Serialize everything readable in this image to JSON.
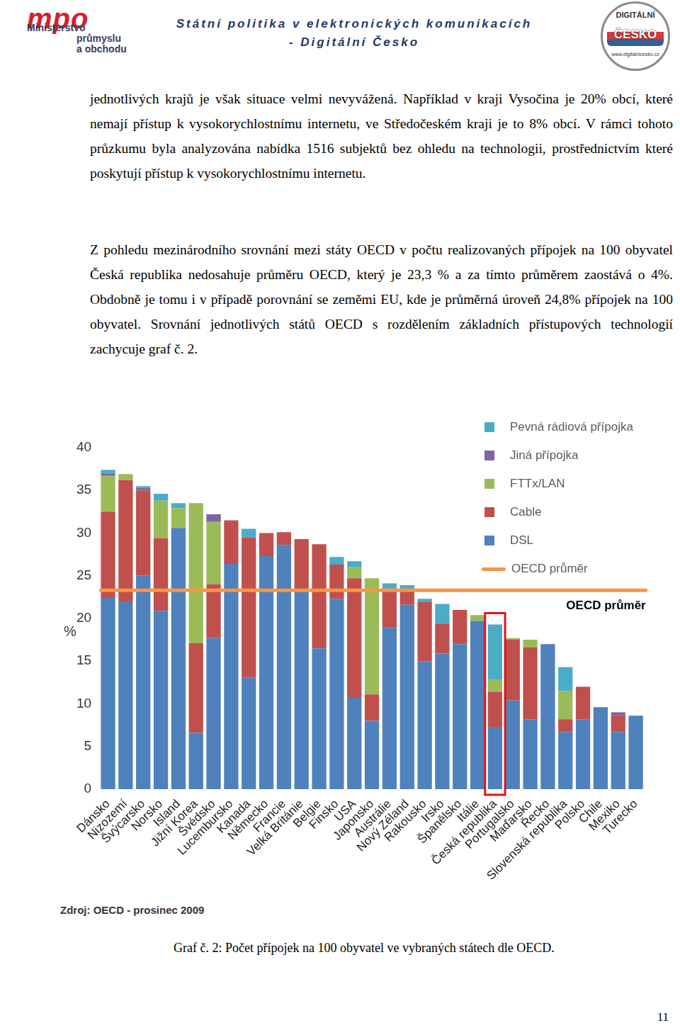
{
  "header": {
    "logo_mark": "mpo",
    "logo_lines": [
      "Ministerstvo",
      "průmyslu",
      "a obchodu"
    ],
    "title": "Státní politika v elektronických komunikacích",
    "subtitle": "- Digitální Česko",
    "badge": [
      "DIGITÁLNÍ",
      "ČESKO",
      "www.digitalnicesko.cz"
    ]
  },
  "paragraphs": [
    "jednotlivých krajů je však situace velmi nevyvážená. Například v kraji Vysočina je 20% obcí, které nemají přístup k vysokorychlostnímu internetu, ve Středočeském kraji je to 8% obcí. V rámci tohoto průzkumu byla analyzována nabídka 1516 subjektů bez ohledu na technologii, prostřednictvím které poskytují přístup k vysokorychlostnímu internetu.",
    "Z pohledu mezinárodního srovnání mezi státy OECD v počtu realizovaných přípojek na 100 obyvatel Česká republika nedosahuje průměru OECD, který je 23,3 % a za tímto průměrem zaostává o 4%. Obdobně je tomu i v případě porovnání se zeměmi EU, kde je průměrná úroveň 24,8% přípojek na 100 obyvatel. Srovnání jednotlivých států OECD s rozdělením základních přístupových technologií zachycuje graf č. 2."
  ],
  "chart_data": {
    "type": "bar",
    "stacked": true,
    "grid": false,
    "legend": "upper right",
    "y_label": "%",
    "ylim": [
      0,
      40
    ],
    "yticks": [
      0,
      5,
      10,
      15,
      20,
      25,
      30,
      35,
      40
    ],
    "categories": [
      "Dánsko",
      "Nizozemí",
      "Švýcarsko",
      "Norsko",
      "Island",
      "Jižní Korea",
      "Švédsko",
      "Lucembursko",
      "Kanada",
      "Německo",
      "Francie",
      "Velká Británie",
      "Belgie",
      "Finsko",
      "USA",
      "Japonsko",
      "Austrálie",
      "Nový Zéland",
      "Rakousko",
      "Irsko",
      "Španělsko",
      "Itálie",
      "Česká republika",
      "Portugalsko",
      "Maďarsko",
      "Řecko",
      "Slovenská republika",
      "Polsko",
      "Chile",
      "Mexiko",
      "Turecko"
    ],
    "series": [
      {
        "name": "DSL",
        "color": "#4f81bd",
        "values": [
          22.4,
          22.0,
          25.0,
          20.9,
          30.6,
          6.6,
          17.7,
          26.4,
          13.1,
          27.3,
          28.6,
          23.3,
          16.5,
          22.3,
          10.7,
          8.0,
          18.9,
          21.6,
          15.0,
          15.9,
          17.0,
          19.7,
          7.3,
          10.4,
          8.2,
          17.0,
          6.7,
          8.2,
          9.6,
          6.7,
          8.6
        ]
      },
      {
        "name": "Cable",
        "color": "#c0504d",
        "values": [
          10.1,
          14.2,
          10.0,
          8.5,
          0,
          10.5,
          6.3,
          5.1,
          16.4,
          2.7,
          1.5,
          6.0,
          12.2,
          4.0,
          14.0,
          3.1,
          4.3,
          1.6,
          6.9,
          3.5,
          4.0,
          0,
          4.1,
          7.1,
          8.4,
          0,
          1.5,
          3.8,
          0,
          2.0,
          0
        ]
      },
      {
        "name": "FTTx/LAN",
        "color": "#9bbb59",
        "values": [
          4.2,
          0.7,
          0,
          4.4,
          2.3,
          16.4,
          7.3,
          0,
          0,
          0,
          0,
          0,
          0,
          0,
          1.3,
          13.6,
          0,
          0,
          0,
          0,
          0,
          0.7,
          1.4,
          0.2,
          0.9,
          0,
          3.3,
          0,
          0,
          0,
          0
        ]
      },
      {
        "name": "Jiná přípojka",
        "color": "#8064a2",
        "values": [
          0.3,
          0,
          0.3,
          0,
          0,
          0,
          0.9,
          0,
          0,
          0,
          0,
          0,
          0,
          0,
          0,
          0,
          0,
          0,
          0,
          0,
          0,
          0,
          0,
          0,
          0,
          0,
          0,
          0,
          0,
          0.3,
          0
        ]
      },
      {
        "name": "Pevná rádiová přípojka",
        "color": "#4bacc6",
        "values": [
          0.4,
          0,
          0.2,
          0.8,
          0.6,
          0,
          0,
          0,
          1.0,
          0,
          0,
          0,
          0,
          0.9,
          0.7,
          0,
          0.9,
          0.7,
          0.4,
          2.3,
          0,
          0,
          6.5,
          0,
          0,
          0,
          2.8,
          0,
          0,
          0,
          0
        ]
      }
    ],
    "average": {
      "name": "OECD průměr",
      "value": 23.3,
      "color": "#f79646"
    },
    "annotation": "OECD průměr",
    "source": "Zdroj: OECD - prosinec 2009"
  },
  "caption": "Graf č. 2: Počet přípojek na 100 obyvatel ve vybraných státech dle OECD.",
  "page_number": "11"
}
